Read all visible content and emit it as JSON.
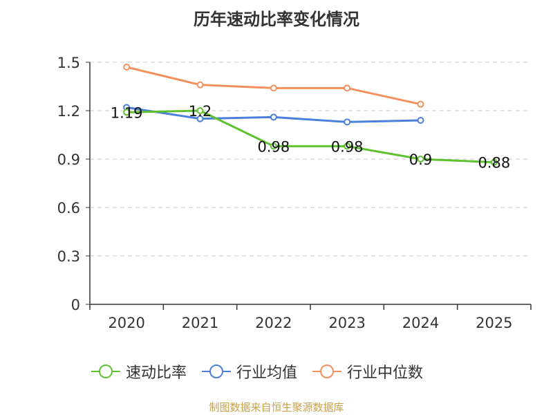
{
  "chart_data": {
    "type": "line",
    "title": "历年速动比率变化情况",
    "categories": [
      "2020",
      "2021",
      "2022",
      "2023",
      "2024",
      "2025"
    ],
    "ylim": [
      0,
      1.5
    ],
    "yticks": [
      "0",
      "0.3",
      "0.6",
      "0.9",
      "1.2",
      "1.5"
    ],
    "ytick_values": [
      0,
      0.3,
      0.6,
      0.9,
      1.2,
      1.5
    ],
    "grid": true,
    "legend_position": "bottom",
    "series": [
      {
        "name": "速动比率",
        "color": "#5ec12e",
        "values": [
          1.19,
          1.2,
          0.98,
          0.98,
          0.9,
          0.88
        ],
        "labels": [
          "1.19",
          "1.2",
          "0.98",
          "0.98",
          "0.9",
          "0.88"
        ]
      },
      {
        "name": "行业均值",
        "color": "#4a7fdc",
        "values": [
          1.22,
          1.15,
          1.16,
          1.13,
          1.14,
          null
        ]
      },
      {
        "name": "行业中位数",
        "color": "#f5905c",
        "values": [
          1.47,
          1.36,
          1.34,
          1.34,
          1.24,
          null
        ]
      }
    ]
  },
  "source": "制图数据来自恒生聚源数据库"
}
